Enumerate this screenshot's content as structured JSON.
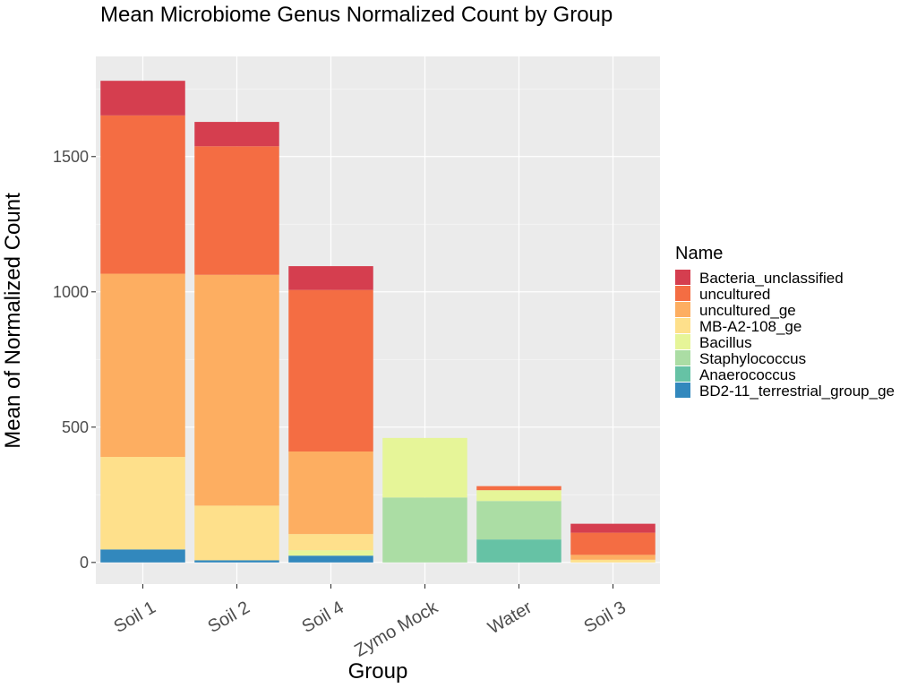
{
  "chart_data": {
    "type": "bar",
    "stacked": true,
    "title": "Mean Microbiome Genus Normalized Count by Group",
    "xlabel": "Group",
    "ylabel": "Mean of Normalized Count",
    "ylim": [
      -80,
      1870
    ],
    "yticks": [
      0,
      500,
      1000,
      1500
    ],
    "grid": true,
    "legend_position": "right",
    "legend_title": "Name",
    "categories": [
      "Soil 1",
      "Soil 2",
      "Soil 4",
      "Zymo Mock",
      "Water",
      "Soil 3"
    ],
    "series": [
      {
        "name": "BD2-11_terrestrial_group_ge",
        "color": "#3288BD",
        "values": [
          48,
          8,
          25,
          0,
          0,
          0
        ]
      },
      {
        "name": "Anaerococcus",
        "color": "#66C2A5",
        "values": [
          0,
          0,
          0,
          0,
          85,
          0
        ]
      },
      {
        "name": "Staphylococcus",
        "color": "#ABDDA4",
        "values": [
          0,
          0,
          0,
          240,
          142,
          0
        ]
      },
      {
        "name": "Bacillus",
        "color": "#E6F598",
        "values": [
          0,
          0,
          20,
          220,
          40,
          0
        ]
      },
      {
        "name": "MB-A2-108_ge",
        "color": "#FEE08B",
        "values": [
          342,
          202,
          60,
          0,
          0,
          10
        ]
      },
      {
        "name": "uncultured_ge",
        "color": "#FDAE61",
        "values": [
          677,
          853,
          305,
          0,
          0,
          18
        ]
      },
      {
        "name": "uncultured",
        "color": "#F46D43",
        "values": [
          585,
          475,
          597,
          0,
          15,
          82
        ]
      },
      {
        "name": "Bacteria_unclassified",
        "color": "#D53E4F",
        "values": [
          128,
          90,
          88,
          0,
          0,
          33
        ]
      }
    ]
  }
}
